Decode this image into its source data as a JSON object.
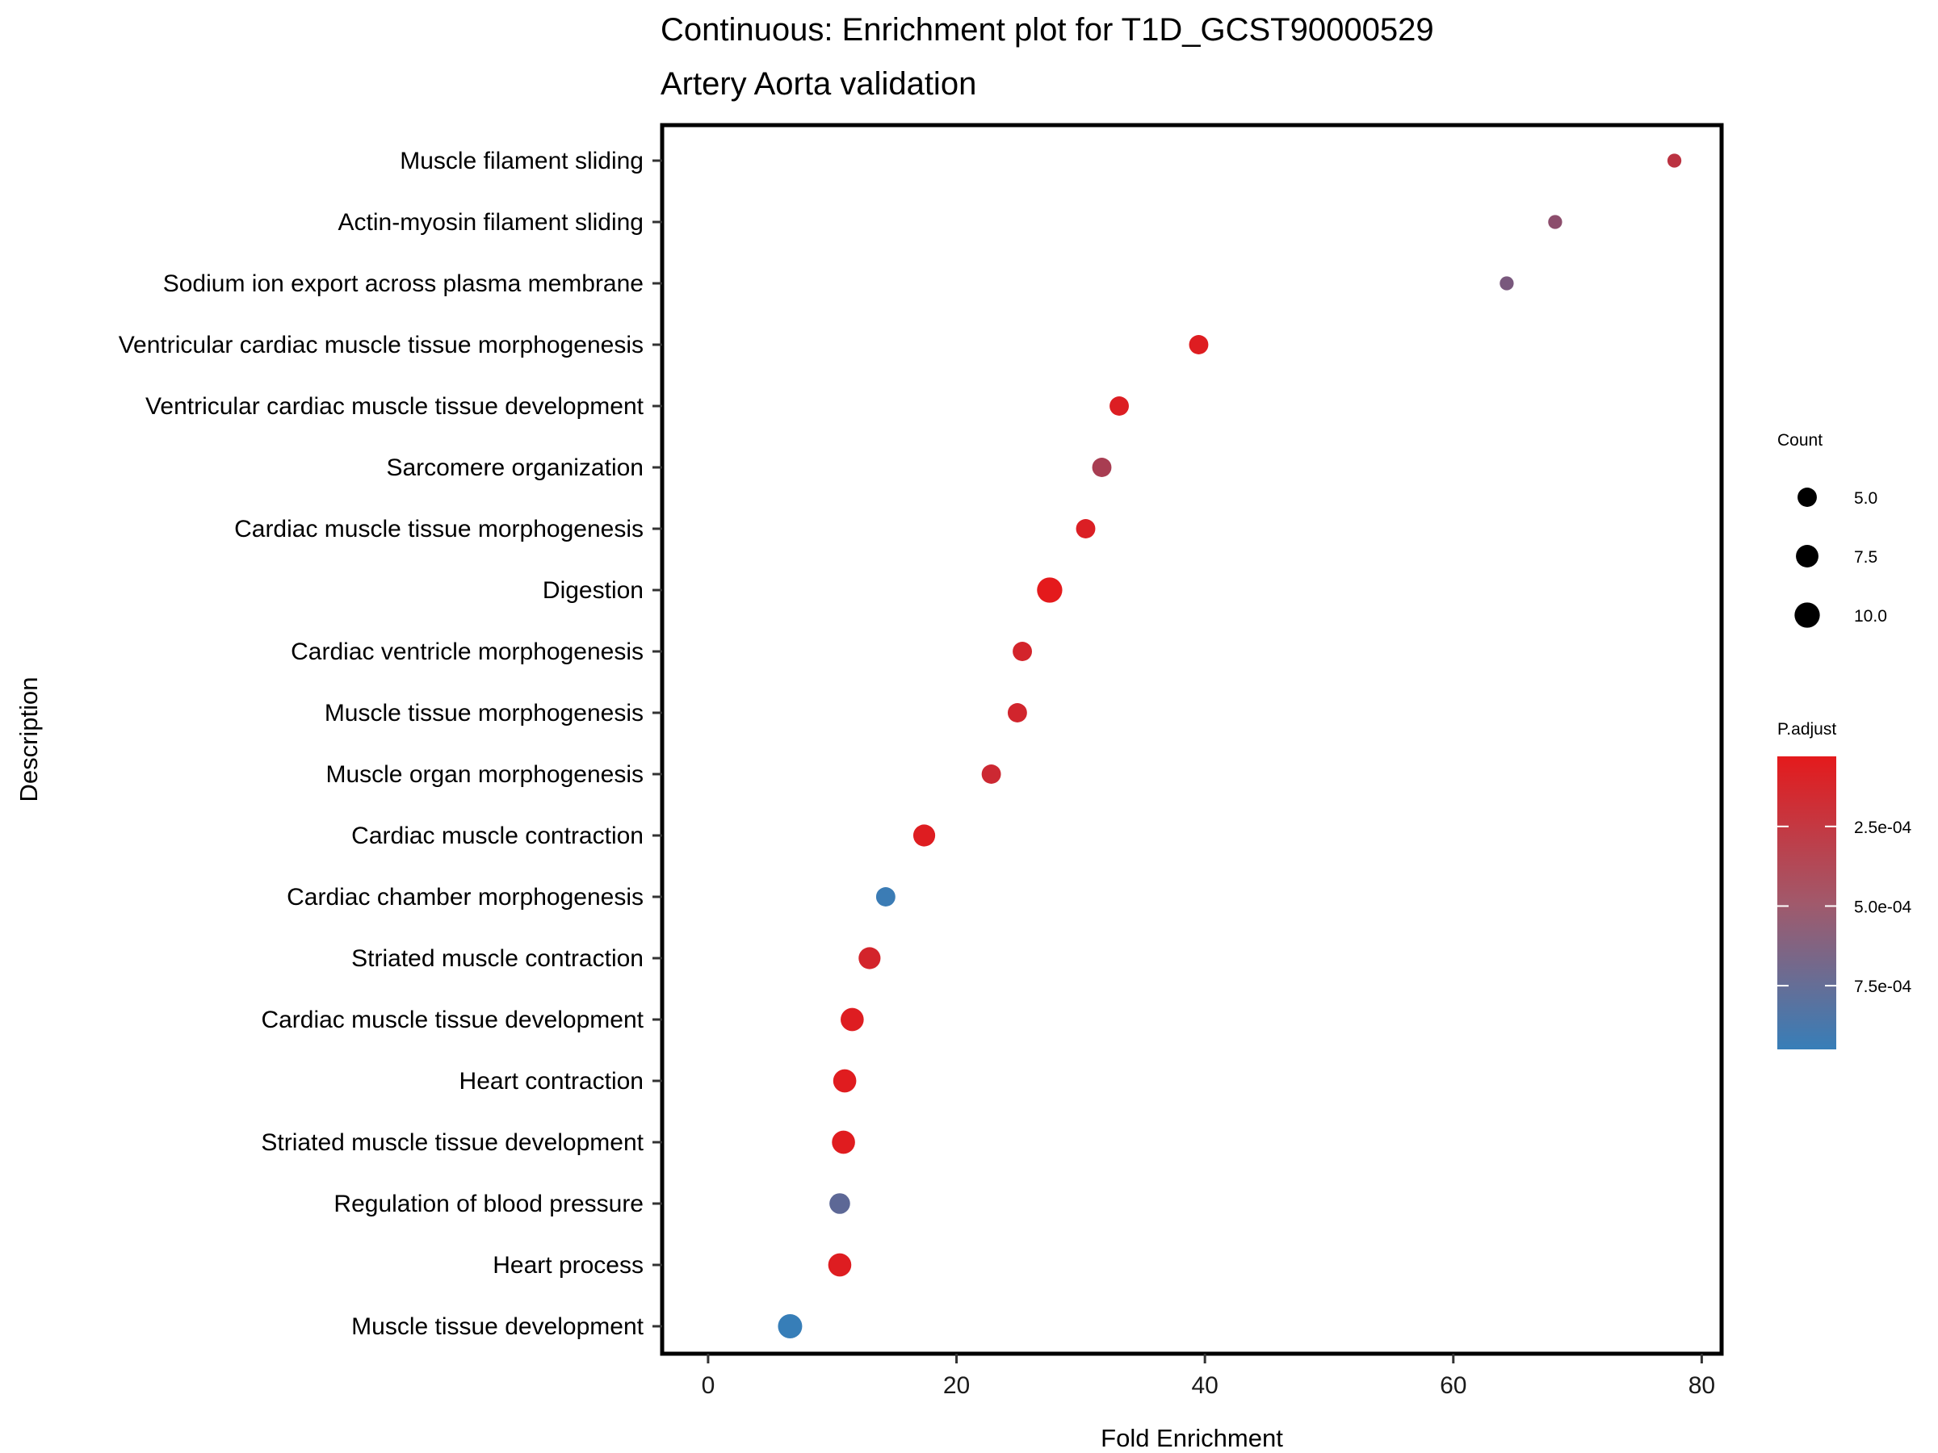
{
  "chart_data": {
    "type": "scatter",
    "title": "Continuous: Enrichment plot for T1D_GCST90000529",
    "subtitle": "Artery Aorta validation",
    "xlabel": "Fold Enrichment",
    "ylabel": "Description",
    "xlim": [
      -3.7,
      81.6
    ],
    "xticks": [
      0,
      20,
      40,
      60,
      80
    ],
    "grid": false,
    "legend_position": "right",
    "size_legend": {
      "title": "Count",
      "entries": [
        {
          "label": "5.0",
          "value": 5.0
        },
        {
          "label": "7.5",
          "value": 7.5
        },
        {
          "label": "10.0",
          "value": 10.0
        }
      ]
    },
    "color_legend": {
      "title": "P.adjust",
      "low_color": "#e41a1c",
      "high_color": "#377eb8",
      "range": [
        3e-05,
        0.00095
      ],
      "ticks": [
        {
          "label": "2.5e-04",
          "value": 0.00025
        },
        {
          "label": "5.0e-04",
          "value": 0.0005
        },
        {
          "label": "7.5e-04",
          "value": 0.00075
        }
      ]
    },
    "points": [
      {
        "label": "Muscle filament sliding",
        "x": 77.8,
        "count": 2,
        "p_adjust": 0.00025
      },
      {
        "label": "Actin-myosin filament sliding",
        "x": 68.2,
        "count": 2,
        "p_adjust": 0.0005
      },
      {
        "label": "Sodium ion export across plasma membrane",
        "x": 64.3,
        "count": 2,
        "p_adjust": 0.0006
      },
      {
        "label": "Ventricular cardiac muscle tissue morphogenesis",
        "x": 39.5,
        "count": 5,
        "p_adjust": 6e-05
      },
      {
        "label": "Ventricular cardiac muscle tissue development",
        "x": 33.1,
        "count": 5,
        "p_adjust": 7e-05
      },
      {
        "label": "Sarcomere organization",
        "x": 31.7,
        "count": 5,
        "p_adjust": 0.00035
      },
      {
        "label": "Cardiac muscle tissue morphogenesis",
        "x": 30.4,
        "count": 5,
        "p_adjust": 8e-05
      },
      {
        "label": "Digestion",
        "x": 27.5,
        "count": 10,
        "p_adjust": 3e-05
      },
      {
        "label": "Cardiac ventricle morphogenesis",
        "x": 25.3,
        "count": 5,
        "p_adjust": 0.00012
      },
      {
        "label": "Muscle tissue morphogenesis",
        "x": 24.9,
        "count": 5,
        "p_adjust": 0.00013
      },
      {
        "label": "Muscle organ morphogenesis",
        "x": 22.8,
        "count": 5,
        "p_adjust": 0.00016
      },
      {
        "label": "Cardiac muscle contraction",
        "x": 17.4,
        "count": 7,
        "p_adjust": 6e-05
      },
      {
        "label": "Cardiac chamber morphogenesis",
        "x": 14.3,
        "count": 5,
        "p_adjust": 0.00093
      },
      {
        "label": "Striated muscle contraction",
        "x": 13.0,
        "count": 7,
        "p_adjust": 0.00012
      },
      {
        "label": "Cardiac muscle tissue development",
        "x": 11.6,
        "count": 8,
        "p_adjust": 6e-05
      },
      {
        "label": "Heart contraction",
        "x": 11.0,
        "count": 8,
        "p_adjust": 5e-05
      },
      {
        "label": "Striated muscle tissue development",
        "x": 10.9,
        "count": 8,
        "p_adjust": 5e-05
      },
      {
        "label": "Regulation of blood pressure",
        "x": 10.6,
        "count": 6,
        "p_adjust": 0.00075
      },
      {
        "label": "Heart process",
        "x": 10.6,
        "count": 8,
        "p_adjust": 6e-05
      },
      {
        "label": "Muscle tissue development",
        "x": 6.6,
        "count": 9,
        "p_adjust": 0.00095
      }
    ]
  }
}
